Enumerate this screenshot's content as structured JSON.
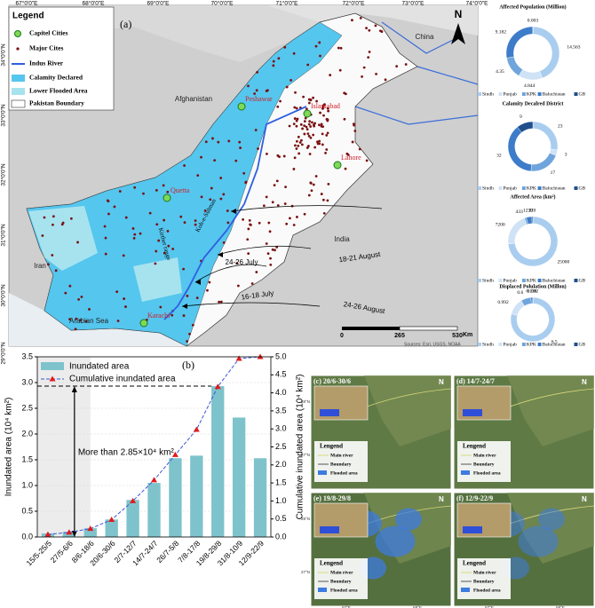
{
  "map": {
    "label": "(a)",
    "north": "N",
    "legend": {
      "title": "Legend",
      "items": [
        "Capitel Cities",
        "Major Cites",
        "Indus River",
        "Calamity Declared",
        "Lower Flooded Area",
        "Pakistan Boundary"
      ]
    },
    "lon_ticks": [
      "67°0'0\"E",
      "68°0'0\"E",
      "69°0'0\"E",
      "70°0'0\"E",
      "71°0'0\"E",
      "72°0'0\"E",
      "73°0'0\"E",
      "74°0'0\"E"
    ],
    "lat_ticks": [
      "34°0'0\"N",
      "33°0'0\"N",
      "32°0'0\"N",
      "31°0'0\"N",
      "30°0'0\"N",
      "29°0'0\"N"
    ],
    "regions": [
      "China",
      "Afghanistan",
      "Iran",
      "India",
      "Arabian Sea"
    ],
    "cities": [
      "Peshawar",
      "Islamabad",
      "Lahore",
      "Quetta",
      "Karachi"
    ],
    "ranges": [
      "Koh-e-Sulman",
      "Kirther range"
    ],
    "events": [
      "18-21 August",
      "24-26 July",
      "16-18 July",
      "24-26 August"
    ],
    "scale": {
      "ticks": [
        0,
        265,
        530
      ],
      "unit": "Km"
    },
    "source": "Sources: Esri, USGS, NOAA"
  },
  "chart_data": [
    {
      "type": "bar",
      "title": "(b)",
      "ylabel": "Inundated area (10⁴ km²)",
      "y2label": "Cumulative inundated area (10⁴ km²)",
      "annotation": "More than 2.85×10⁴ km²",
      "categories": [
        "15/5-25/5",
        "27/5-6/6",
        "8/6-18/6",
        "20/6-30/6",
        "2/7-12/7",
        "14/7-24/7",
        "26/7-5/8",
        "7/8-17/8",
        "19/8-29/8",
        "31/8-10/9",
        "12/9-22/9"
      ],
      "series": [
        {
          "name": "Inundated area",
          "color": "#7ec3cb",
          "values": [
            0.07,
            0.1,
            0.17,
            0.34,
            0.72,
            1.05,
            1.53,
            1.58,
            2.93,
            2.32,
            1.53
          ]
        },
        {
          "name": "Cumulative inundated area",
          "type": "line",
          "axis": "y2",
          "color": "#e31a1c",
          "line_color": "#3a56d8",
          "values": [
            0.07,
            0.13,
            0.23,
            0.48,
            1.0,
            1.58,
            2.28,
            2.98,
            4.17,
            4.95,
            5.0
          ]
        }
      ],
      "ylim": [
        0,
        3.5
      ],
      "yticks": [
        {
          "value": 0,
          "label": "0.0"
        },
        0.5,
        {
          "value": 1,
          "label": "1.0"
        },
        1.5,
        {
          "value": 2,
          "label": "2.0"
        },
        2.5,
        {
          "value": 3,
          "label": "3.0"
        },
        3.5
      ],
      "y2lim": [
        0,
        5
      ],
      "y2ticks": [
        {
          "value": 0,
          "label": "0.0"
        },
        0.5,
        {
          "value": 1,
          "label": "1.0"
        },
        1.5,
        {
          "value": 2,
          "label": "2.0"
        },
        2.5,
        {
          "value": 3,
          "label": "3.0"
        },
        3.5,
        {
          "value": 4,
          "label": "4.0"
        },
        4.5,
        {
          "value": 5,
          "label": "5.0"
        }
      ],
      "grid": true
    },
    {
      "type": "donut",
      "title": "Affected Population (Million)",
      "categories": [
        "Sindh",
        "Punjab",
        "KPK",
        "Baluchistan",
        "GB"
      ],
      "colors": [
        "#a9cdef",
        "#cfe2f6",
        "#6fa5dc",
        "#3d7cc9",
        "#1f4e8c"
      ],
      "values": [
        14.563,
        4.844,
        4.35,
        9.182,
        0.003
      ]
    },
    {
      "type": "donut",
      "title": "Calamity Decalred District",
      "categories": [
        "Sindh",
        "Punjab",
        "KPK",
        "Baluchistan",
        "GB"
      ],
      "colors": [
        "#a9cdef",
        "#cfe2f6",
        "#6fa5dc",
        "#3d7cc9",
        "#1f4e8c"
      ],
      "values": [
        23,
        3,
        17,
        32,
        9
      ]
    },
    {
      "type": "donut",
      "title": "Affected Area (km²)",
      "categories": [
        "Sindh",
        "Punjab",
        "KPK",
        "Baluchistan",
        "GB"
      ],
      "colors": [
        "#a9cdef",
        "#cfe2f6",
        "#6fa5dc",
        "#3d7cc9",
        "#1f4e8c"
      ],
      "values": [
        25000,
        7200,
        433,
        1230,
        220
      ]
    },
    {
      "type": "donut",
      "title": "Displaced Polulation (Millon)",
      "categories": [
        "Sindh",
        "Punjab",
        "KPK",
        "Baluchistan",
        "GB"
      ],
      "colors": [
        "#a9cdef",
        "#cfe2f6",
        "#6fa5dc",
        "#3d7cc9",
        "#1f4e8c"
      ],
      "values": [
        6.5,
        0.992,
        0.6,
        0.116,
        0.002
      ]
    }
  ],
  "panels": [
    {
      "label": "(c) 20/6-30/6",
      "north": "N",
      "legend": [
        "Lengend",
        "Main river",
        "Boundary",
        "Flooded area"
      ],
      "lat": [
        "28°N",
        "27°N"
      ]
    },
    {
      "label": "(d) 14/7-24/7",
      "north": "N",
      "legend": [
        "Lengend",
        "Main river",
        "Boundary",
        "Flooded area"
      ]
    },
    {
      "label": "(e) 19/8-29/8",
      "north": "N",
      "legend": [
        "Lengend",
        "Main river",
        "Boundary",
        "Flooded area"
      ],
      "lat": [
        "28°N",
        "27°N"
      ],
      "lon": [
        "67°E",
        "68°E"
      ]
    },
    {
      "label": "(f) 12/9-22/9",
      "north": "N",
      "legend": [
        "Lengend",
        "Main river",
        "Boundary",
        "Flooded area"
      ],
      "lon": [
        "67°E",
        "68°E"
      ]
    }
  ]
}
